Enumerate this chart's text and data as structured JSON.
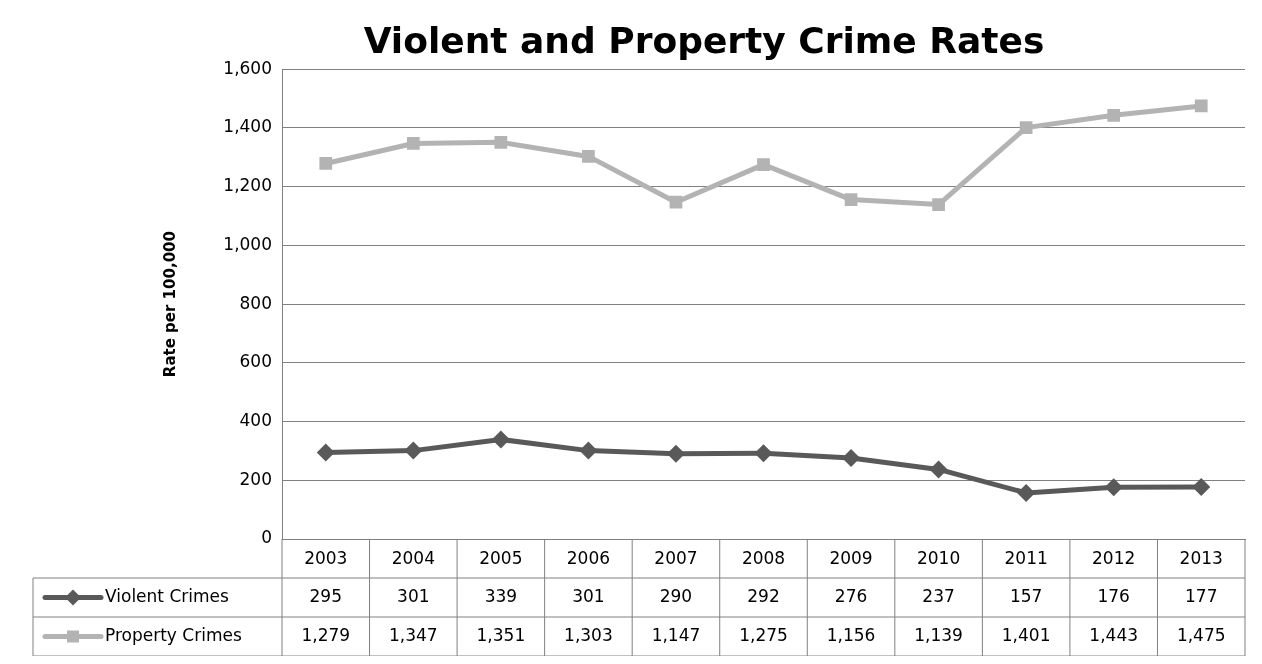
{
  "chart_data": {
    "type": "line",
    "title": "Violent and Property Crime Rates",
    "ylabel": "Rate per 100,000",
    "categories": [
      "2003",
      "2004",
      "2005",
      "2006",
      "2007",
      "2008",
      "2009",
      "2010",
      "2011",
      "2012",
      "2013"
    ],
    "series": [
      {
        "name": "Violent Crimes",
        "color": "#595959",
        "marker": "diamond",
        "values": [
          295,
          301,
          339,
          301,
          290,
          292,
          276,
          237,
          157,
          176,
          177
        ],
        "value_labels": [
          "295",
          "301",
          "339",
          "301",
          "290",
          "292",
          "276",
          "237",
          "157",
          "176",
          "177"
        ]
      },
      {
        "name": "Property Crimes",
        "color": "#b3b3b3",
        "marker": "square",
        "values": [
          1279,
          1347,
          1351,
          1303,
          1147,
          1275,
          1156,
          1139,
          1401,
          1443,
          1475
        ],
        "value_labels": [
          "1,279",
          "1,347",
          "1,351",
          "1,303",
          "1,147",
          "1,275",
          "1,156",
          "1,139",
          "1,401",
          "1,443",
          "1,475"
        ]
      }
    ],
    "ylim": [
      0,
      1600
    ],
    "yticks": [
      {
        "value": 0,
        "label": "0"
      },
      {
        "value": 200,
        "label": "200"
      },
      {
        "value": 400,
        "label": "400"
      },
      {
        "value": 600,
        "label": "600"
      },
      {
        "value": 800,
        "label": "800"
      },
      {
        "value": 1000,
        "label": "1,000"
      },
      {
        "value": 1200,
        "label": "1,200"
      },
      {
        "value": 1400,
        "label": "1,400"
      },
      {
        "value": 1600,
        "label": "1,600"
      }
    ],
    "grid": "y",
    "legend": "bottom",
    "line_style": "solid"
  }
}
